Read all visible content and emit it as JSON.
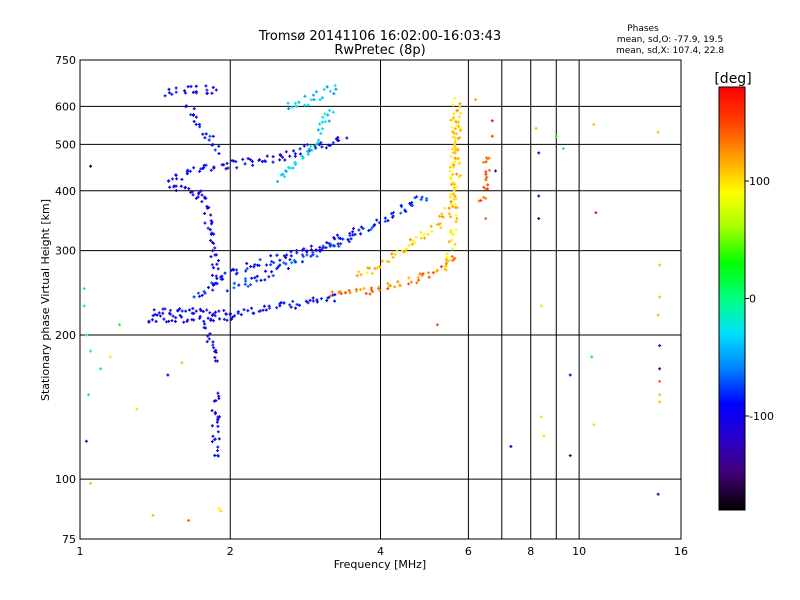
{
  "chart_data": {
    "type": "scatter",
    "title": "Tromsø 20141106 16:02:00-16:03:43",
    "subtitle": "RwPretec (8p)",
    "stats_title": "Phases",
    "stats_lines": [
      "mean, sd,O: -77.9, 19.5",
      "mean, sd,X: 107.4, 22.8"
    ],
    "xlabel": "Frequency [MHz]",
    "ylabel": "Stationary phase Virtual Height [km]",
    "x_scale": "log",
    "y_scale": "log",
    "xlim": [
      1,
      16
    ],
    "ylim": [
      75,
      750
    ],
    "x_ticks": [
      1,
      2,
      4,
      6,
      8,
      10,
      16
    ],
    "y_ticks": [
      75,
      100,
      200,
      300,
      400,
      500,
      600,
      750
    ],
    "x_tick_labels": [
      "1",
      "2",
      "4",
      "6",
      "8",
      "10",
      "16"
    ],
    "y_tick_labels": [
      "75",
      "100",
      "200",
      "300",
      "400",
      "500",
      "600",
      "750"
    ],
    "grid": true,
    "colorbar": {
      "label": "[deg]",
      "range": [
        -180,
        180
      ],
      "ticks": [
        100,
        0,
        -100
      ],
      "tick_labels": [
        "100",
        "0",
        "-100"
      ],
      "colors": [
        "#000000",
        "#400070",
        "#2a00c8",
        "#0000ff",
        "#0080ff",
        "#00e0ff",
        "#00ff80",
        "#00ff00",
        "#a0ff00",
        "#ffff00",
        "#ffa000",
        "#ff4000",
        "#ff0000"
      ]
    },
    "traces": [
      {
        "name": "",
        "phase": -95,
        "points": [
          [
            1.4,
            224
          ],
          [
            1.6,
            224
          ],
          [
            1.8,
            223
          ],
          [
            2.0,
            222
          ],
          [
            2.3,
            226
          ],
          [
            2.6,
            230
          ],
          [
            3.0,
            236
          ],
          [
            3.3,
            240
          ]
        ]
      },
      {
        "name": "",
        "phase": -100,
        "points": [
          [
            1.35,
            216
          ],
          [
            1.5,
            216
          ],
          [
            1.7,
            216
          ],
          [
            1.9,
            216
          ],
          [
            2.0,
            217
          ]
        ]
      },
      {
        "name": "",
        "phase": -80,
        "points": [
          [
            2.0,
            250
          ],
          [
            2.3,
            262
          ],
          [
            2.6,
            280
          ],
          [
            3.0,
            300
          ],
          [
            3.5,
            320
          ],
          [
            4.0,
            345
          ],
          [
            4.5,
            370
          ],
          [
            5.0,
            395
          ]
        ]
      },
      {
        "name": "",
        "phase": -90,
        "points": [
          [
            1.7,
            240
          ],
          [
            2.0,
            270
          ],
          [
            2.4,
            285
          ],
          [
            2.8,
            300
          ],
          [
            3.2,
            310
          ],
          [
            3.6,
            330
          ]
        ]
      },
      {
        "name": "",
        "phase": 130,
        "points": [
          [
            3.2,
            245
          ],
          [
            3.6,
            246
          ],
          [
            4.0,
            250
          ],
          [
            4.4,
            256
          ],
          [
            4.8,
            265
          ],
          [
            5.2,
            273
          ],
          [
            5.5,
            283
          ],
          [
            5.7,
            296
          ]
        ]
      },
      {
        "name": "",
        "phase": 110,
        "points": [
          [
            3.6,
            265
          ],
          [
            4.0,
            280
          ],
          [
            4.4,
            300
          ],
          [
            4.8,
            320
          ],
          [
            5.2,
            340
          ],
          [
            5.5,
            370
          ],
          [
            5.65,
            400
          ],
          [
            5.7,
            450
          ],
          [
            5.7,
            550
          ],
          [
            5.7,
            620
          ]
        ]
      },
      {
        "name": "",
        "phase": 100,
        "points": [
          [
            5.5,
            280
          ],
          [
            5.6,
            330
          ],
          [
            5.6,
            400
          ],
          [
            5.6,
            500
          ],
          [
            5.65,
            600
          ]
        ]
      },
      {
        "name": "",
        "phase": 140,
        "points": [
          [
            6.4,
            380
          ],
          [
            6.45,
            400
          ],
          [
            6.5,
            420
          ],
          [
            6.55,
            450
          ],
          [
            6.6,
            480
          ]
        ]
      },
      {
        "name": "",
        "phase": -100,
        "points": [
          [
            1.5,
            420
          ],
          [
            1.7,
            440
          ],
          [
            1.9,
            450
          ],
          [
            2.2,
            460
          ],
          [
            2.5,
            470
          ],
          [
            2.8,
            485
          ],
          [
            3.1,
            500
          ],
          [
            3.4,
            520
          ]
        ]
      },
      {
        "name": "",
        "phase": -105,
        "points": [
          [
            1.5,
            410
          ],
          [
            1.6,
            400
          ],
          [
            1.7,
            395
          ],
          [
            1.8,
            390
          ]
        ]
      },
      {
        "name": "",
        "phase": -90,
        "points": [
          [
            1.65,
            600
          ],
          [
            1.7,
            570
          ],
          [
            1.75,
            540
          ],
          [
            1.8,
            520
          ],
          [
            1.85,
            500
          ],
          [
            1.9,
            480
          ]
        ]
      },
      {
        "name": "",
        "phase": -100,
        "points": [
          [
            1.75,
            400
          ],
          [
            1.8,
            360
          ],
          [
            1.82,
            330
          ],
          [
            1.85,
            300
          ],
          [
            1.87,
            270
          ],
          [
            1.88,
            250
          ]
        ]
      },
      {
        "name": "",
        "phase": -100,
        "points": [
          [
            1.8,
            210
          ],
          [
            1.82,
            195
          ],
          [
            1.85,
            185
          ],
          [
            1.87,
            175
          ]
        ]
      },
      {
        "name": "",
        "phase": -30,
        "points": [
          [
            2.5,
            420
          ],
          [
            2.7,
            450
          ],
          [
            2.9,
            490
          ],
          [
            3.0,
            520
          ],
          [
            3.1,
            560
          ],
          [
            3.2,
            600
          ]
        ]
      },
      {
        "name": "",
        "phase": -40,
        "points": [
          [
            2.6,
            600
          ],
          [
            2.9,
            620
          ],
          [
            3.1,
            640
          ],
          [
            3.3,
            660
          ]
        ]
      },
      {
        "name": "",
        "phase": -100,
        "points": [
          [
            1.5,
            640
          ],
          [
            1.6,
            650
          ],
          [
            1.7,
            650
          ],
          [
            1.8,
            650
          ],
          [
            1.9,
            650
          ]
        ]
      },
      {
        "name": "",
        "phase": -100,
        "points": [
          [
            1.87,
            150
          ],
          [
            1.87,
            115
          ],
          [
            1.88,
            110
          ]
        ]
      },
      {
        "name": "",
        "phase": 100,
        "points": [
          [
            1.9,
            87
          ],
          [
            1.9,
            85
          ]
        ]
      }
    ],
    "scatter_points": [
      {
        "x": 1.02,
        "y": 250,
        "phase": -20
      },
      {
        "x": 1.02,
        "y": 230,
        "phase": -10
      },
      {
        "x": 1.03,
        "y": 200,
        "phase": -10
      },
      {
        "x": 1.05,
        "y": 185,
        "phase": 0
      },
      {
        "x": 1.04,
        "y": 150,
        "phase": -30
      },
      {
        "x": 1.03,
        "y": 120,
        "phase": -120
      },
      {
        "x": 1.05,
        "y": 98,
        "phase": 110
      },
      {
        "x": 1.1,
        "y": 170,
        "phase": -20
      },
      {
        "x": 1.15,
        "y": 180,
        "phase": 100
      },
      {
        "x": 1.2,
        "y": 210,
        "phase": 20
      },
      {
        "x": 1.3,
        "y": 140,
        "phase": 100
      },
      {
        "x": 1.4,
        "y": 84,
        "phase": 110
      },
      {
        "x": 1.5,
        "y": 165,
        "phase": -100
      },
      {
        "x": 1.6,
        "y": 175,
        "phase": 110
      },
      {
        "x": 1.05,
        "y": 450,
        "phase": -170
      },
      {
        "x": 1.65,
        "y": 82,
        "phase": 140
      },
      {
        "x": 8.2,
        "y": 540,
        "phase": 110
      },
      {
        "x": 8.3,
        "y": 480,
        "phase": -100
      },
      {
        "x": 8.3,
        "y": 390,
        "phase": -120
      },
      {
        "x": 8.3,
        "y": 350,
        "phase": -130
      },
      {
        "x": 9.0,
        "y": 520,
        "phase": 20
      },
      {
        "x": 9.3,
        "y": 490,
        "phase": 0
      },
      {
        "x": 10.7,
        "y": 550,
        "phase": 110
      },
      {
        "x": 10.8,
        "y": 360,
        "phase": 170
      },
      {
        "x": 14.4,
        "y": 530,
        "phase": 110
      },
      {
        "x": 14.5,
        "y": 280,
        "phase": 110
      },
      {
        "x": 14.5,
        "y": 240,
        "phase": 110
      },
      {
        "x": 14.4,
        "y": 220,
        "phase": 110
      },
      {
        "x": 14.5,
        "y": 190,
        "phase": -130
      },
      {
        "x": 14.5,
        "y": 170,
        "phase": -140
      },
      {
        "x": 14.5,
        "y": 160,
        "phase": 140
      },
      {
        "x": 14.5,
        "y": 150,
        "phase": 110
      },
      {
        "x": 14.5,
        "y": 145,
        "phase": 110
      },
      {
        "x": 14.4,
        "y": 93,
        "phase": -140
      },
      {
        "x": 10.6,
        "y": 180,
        "phase": 20
      },
      {
        "x": 10.7,
        "y": 130,
        "phase": 100
      },
      {
        "x": 9.6,
        "y": 165,
        "phase": -120
      },
      {
        "x": 9.6,
        "y": 112,
        "phase": -150
      },
      {
        "x": 8.4,
        "y": 230,
        "phase": 100
      },
      {
        "x": 8.4,
        "y": 135,
        "phase": 100
      },
      {
        "x": 8.5,
        "y": 123,
        "phase": 100
      },
      {
        "x": 7.3,
        "y": 117,
        "phase": -110
      },
      {
        "x": 6.8,
        "y": 440,
        "phase": -120
      },
      {
        "x": 6.7,
        "y": 520,
        "phase": 150
      },
      {
        "x": 6.7,
        "y": 560,
        "phase": 175
      },
      {
        "x": 5.2,
        "y": 210,
        "phase": 150
      },
      {
        "x": 6.5,
        "y": 350,
        "phase": 140
      },
      {
        "x": 6.2,
        "y": 620,
        "phase": 120
      }
    ]
  }
}
